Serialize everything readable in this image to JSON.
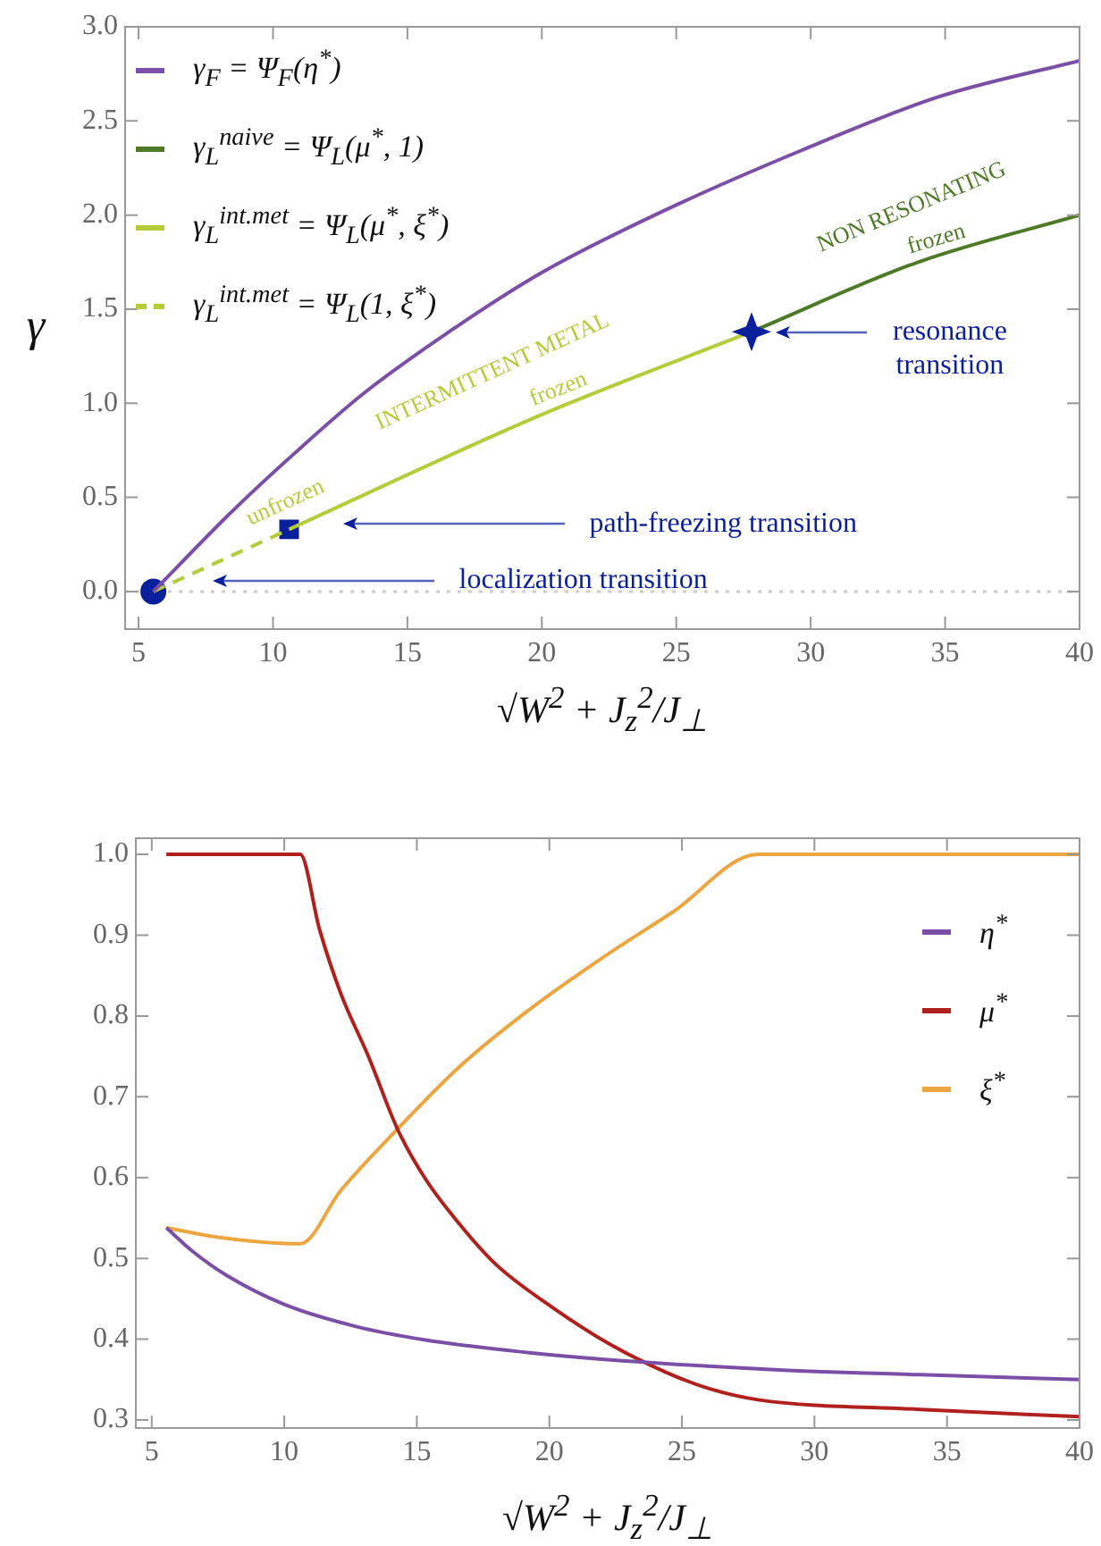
{
  "chart_data": [
    {
      "type": "line",
      "ylabel": "γ",
      "xlabel": "√W$^{2}$ + J$_{z}$$^{2}$/J$_{⊥}$",
      "marker": "none",
      "legend": "top left",
      "xlim": [
        4.5,
        40
      ],
      "xticks": [
        5,
        10,
        15,
        20,
        25,
        30,
        35,
        40
      ],
      "ylim": [
        -0.2,
        3.0
      ],
      "yticks": [
        {
          "value": 0,
          "label": "0.0"
        },
        0.5,
        {
          "value": 1,
          "label": "1.0"
        },
        1.5,
        {
          "value": 2,
          "label": "2.0"
        },
        2.5,
        {
          "value": 3,
          "label": "3.0"
        }
      ],
      "series": [
        {
          "name": "γ$_{F}$ = Ψ$_{F}$(η$^{*}$)",
          "color": "#7b4fa6",
          "x": [
            5.55,
            8.44,
            10.77,
            13.35,
            16.45,
            20.07,
            24.5,
            29.6,
            34.8,
            40
          ],
          "values": [
            0,
            0.42,
            0.73,
            1.05,
            1.37,
            1.7,
            2.02,
            2.34,
            2.63,
            2.82
          ]
        },
        {
          "name": "γ$_{L}$$^{naive}$ = Ψ$_{L}$(μ$^{*}$, 1)",
          "color": "#4e7a27",
          "x": [
            27.8,
            34,
            40
          ],
          "values": [
            1.38,
            1.75,
            2.0
          ]
        },
        {
          "name": "γ$_{L}$$^{int.met}$ = Ψ$_{L}$(μ$^{*}$, ξ$^{*}$)",
          "color": "#b5cc3a",
          "x": [
            10.6,
            20,
            27.8
          ],
          "values": [
            0.33,
            0.94,
            1.38
          ]
        },
        {
          "name": "γ$_{L}$$^{int.met}$ = Ψ$_{L}$(1, ξ$^{*}$)",
          "color": "#b5cc3a",
          "line_style": "dashed",
          "x": [
            5.55,
            10.6
          ],
          "values": [
            0,
            0.33
          ]
        },
        {
          "type": "scatter",
          "marker": "circle",
          "color": "#0a1f9c",
          "x": [
            5.55
          ],
          "values": [
            0
          ]
        },
        {
          "type": "scatter",
          "marker": "square",
          "color": "#0a1f9c",
          "x": [
            10.6
          ],
          "values": [
            0.33
          ]
        },
        {
          "type": "scatter",
          "marker": "star",
          "color": "#0a1f9c",
          "x": [
            27.8
          ],
          "values": [
            1.38
          ]
        }
      ],
      "ref_lines": [
        {
          "axis": "y",
          "value": 0,
          "color": "#cccccc",
          "line_style": "dotted"
        }
      ],
      "annotations": [
        "localization transition",
        "path-freezing transition",
        "resonance transition",
        "unfrozen",
        "INTERMITTENT METAL",
        "frozen",
        "NON RESONATING",
        "frozen"
      ]
    },
    {
      "type": "line",
      "xlabel": "√W$^{2}$ + J$_{z}$$^{2}$/J$_{⊥}$",
      "marker": "none",
      "legend": "top right",
      "xlim": [
        4.4,
        40
      ],
      "xticks": [
        5,
        10,
        15,
        20,
        25,
        30,
        35,
        40
      ],
      "ylim": [
        0.29,
        1.02
      ],
      "yticks": [
        0.3,
        0.4,
        0.5,
        0.6,
        0.7,
        0.8,
        0.9,
        {
          "value": 1,
          "label": "1.0"
        }
      ],
      "series": [
        {
          "name": "η$^{*}$",
          "color": "#7b4fa6",
          "x": [
            5.55,
            6.53,
            7.87,
            10,
            12.67,
            15.33,
            19.33,
            23.33,
            28.67,
            34,
            40
          ],
          "values": [
            0.538,
            0.509,
            0.478,
            0.443,
            0.416,
            0.399,
            0.383,
            0.372,
            0.362,
            0.356,
            0.35
          ]
        },
        {
          "name": "μ$^{*}$",
          "color": "#b0201c",
          "x": [
            5.55,
            10.6,
            11.33,
            12.13,
            13.2,
            14.27,
            15.33,
            16.67,
            18,
            20.13,
            22.27,
            24.4,
            26,
            27.87,
            34,
            40
          ],
          "values": [
            1.0,
            1.0,
            0.907,
            0.828,
            0.748,
            0.66,
            0.598,
            0.54,
            0.492,
            0.439,
            0.394,
            0.359,
            0.339,
            0.325,
            0.313,
            0.304
          ]
        },
        {
          "name": "ξ$^{*}$",
          "color": "#eda53f",
          "x": [
            5.55,
            7.33,
            10.6,
            12.13,
            14.27,
            16.67,
            19.33,
            22,
            24.67,
            27.87,
            40
          ],
          "values": [
            0.538,
            0.527,
            0.518,
            0.584,
            0.66,
            0.739,
            0.81,
            0.872,
            0.929,
            1.0,
            1.0
          ]
        }
      ]
    }
  ]
}
